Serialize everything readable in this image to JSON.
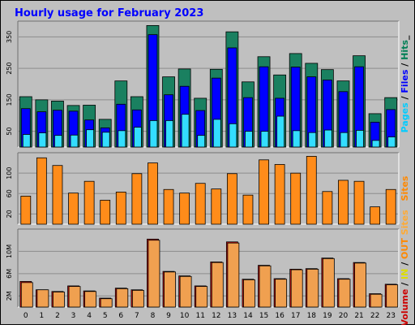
{
  "chart_data": {
    "title": "Hourly usage for February 2023",
    "categories": [
      "0",
      "1",
      "2",
      "3",
      "4",
      "5",
      "6",
      "7",
      "8",
      "9",
      "10",
      "11",
      "12",
      "13",
      "14",
      "15",
      "16",
      "17",
      "18",
      "19",
      "20",
      "21",
      "22",
      "23"
    ],
    "panels": [
      {
        "type": "bar",
        "yticks": [
          50,
          150,
          250,
          350
        ],
        "ylim": [
          0,
          400
        ],
        "side_label_parts": [
          {
            "text": "Pages",
            "color": "#00ccff"
          },
          {
            "text": " / ",
            "color": "#000000"
          },
          {
            "text": "Files",
            "color": "#0000ff"
          },
          {
            "text": " / ",
            "color": "#000000"
          },
          {
            "text": "Hits",
            "color": "#007f55"
          },
          {
            "text": "_",
            "color": "#000000"
          }
        ],
        "series": [
          {
            "name": "Hits",
            "color": "#1a8060",
            "values": [
              160,
              150,
              146,
              132,
              133,
              88,
              210,
              160,
              386,
              223,
              248,
              155,
              247,
              366,
              207,
              287,
              229,
              297,
              266,
              246,
              210,
              290,
              106,
              157
            ]
          },
          {
            "name": "Files",
            "color": "#0000ff",
            "values": [
              122,
              112,
              117,
              114,
              86,
              61,
              136,
              118,
              357,
              166,
              193,
              116,
              219,
              315,
              157,
              255,
              155,
              254,
              223,
              213,
              176,
              255,
              79,
              119
            ]
          },
          {
            "name": "Pages",
            "color": "#33ddff",
            "values": [
              40,
              45,
              37,
              38,
              55,
              47,
              52,
              63,
              84,
              84,
              104,
              37,
              88,
              74,
              50,
              50,
              98,
              52,
              46,
              54,
              46,
              53,
              21,
              32
            ]
          }
        ]
      },
      {
        "type": "bar",
        "yticks": [
          20,
          60,
          100
        ],
        "ylim": [
          0,
          140
        ],
        "side_label_parts": [
          {
            "text": "Sites",
            "color": "#ff8800"
          }
        ],
        "series": [
          {
            "name": "Sites",
            "color": "#ff8c1a",
            "values": [
              55,
              130,
              115,
              61,
              84,
              47,
              63,
              99,
              120,
              68,
              61,
              80,
              69,
              99,
              57,
              126,
              117,
              100,
              133,
              64,
              86,
              84,
              34,
              68
            ]
          }
        ]
      },
      {
        "type": "bar",
        "yticks": [
          2,
          6,
          10
        ],
        "ylim": [
          0,
          14
        ],
        "tick_suffix": "M",
        "side_label_parts": [
          {
            "text": "Volume",
            "color": "#cc0000"
          },
          {
            "text": " / ",
            "color": "#000000"
          },
          {
            "text": "IN",
            "color": "#dddd00"
          },
          {
            "text": " / ",
            "color": "#000000"
          },
          {
            "text": "OUT",
            "color": "#ff8800"
          },
          {
            "text": " Sites",
            "color": "#ffaa33"
          }
        ],
        "series": [
          {
            "name": "Volume",
            "color": "#dd1111",
            "values": [
              4.6,
              3.1,
              2.8,
              3.8,
              2.9,
              1.6,
              3.4,
              3.1,
              12.2,
              6.4,
              5.6,
              3.8,
              8.1,
              11.7,
              5.0,
              7.5,
              5.1,
              6.8,
              6.9,
              8.8,
              5.1,
              8.0,
              2.4,
              4.1
            ]
          },
          {
            "name": "OUT",
            "color": "#f0a050",
            "values": [
              4.4,
              3.1,
              2.7,
              3.7,
              2.8,
              1.5,
              3.3,
              3.0,
              12.0,
              6.3,
              5.5,
              3.7,
              8.0,
              11.5,
              4.9,
              7.4,
              5.0,
              6.7,
              6.8,
              8.7,
              5.0,
              7.9,
              2.3,
              4.0
            ]
          }
        ]
      }
    ]
  }
}
